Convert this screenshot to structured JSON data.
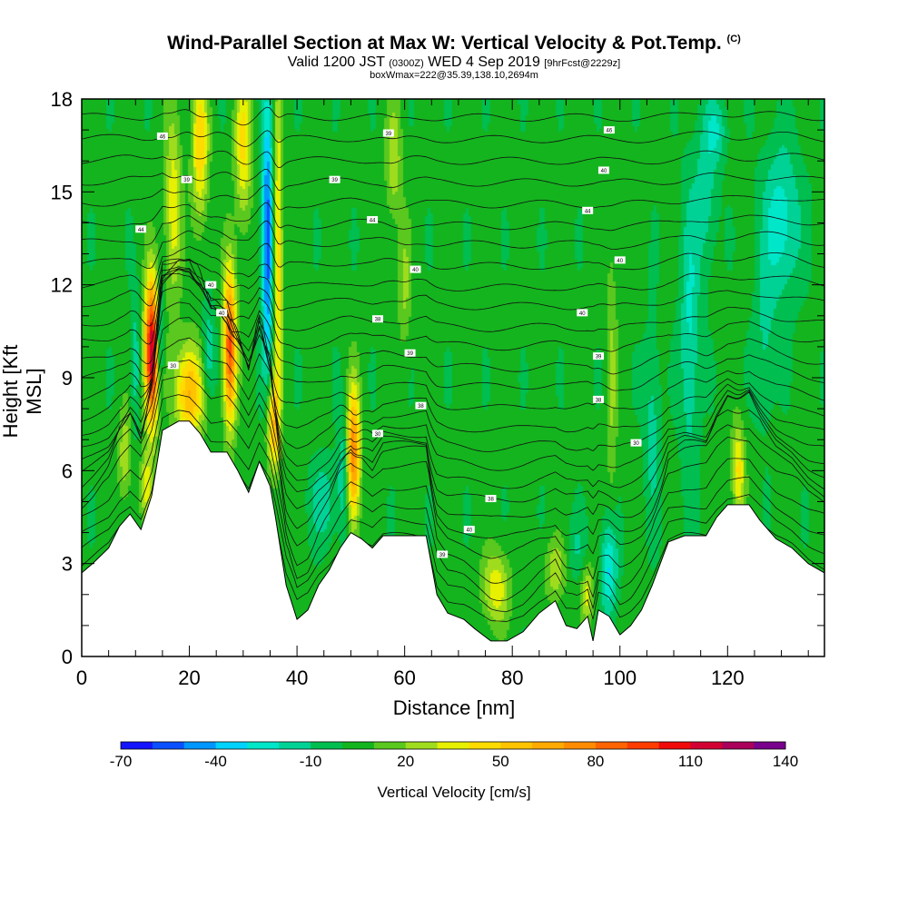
{
  "title": {
    "main": "Wind-Parallel Section at Max W: Vertical Velocity & Pot.Temp.",
    "main_suffix": "(C)",
    "line2_a": "Valid 1200 JST",
    "line2_b": "(0300Z)",
    "line2_c": "WED 4 Sep 2019",
    "line2_d": "[9hrFcst@2229z]",
    "line3": "boxWmax=222@35.39,138.10,2694m"
  },
  "chart_data": {
    "type": "heatmap",
    "xlabel": "Distance [nm]",
    "ylabel": "Height [Kft MSL]",
    "xlim": [
      0,
      138
    ],
    "ylim": [
      0,
      18
    ],
    "x_ticks": [
      "0",
      "20",
      "40",
      "60",
      "80",
      "100",
      "120"
    ],
    "y_ticks": [
      "0",
      "3",
      "6",
      "9",
      "12",
      "15",
      "18"
    ],
    "colorbar": {
      "label": "Vertical Velocity [cm/s]",
      "tick_labels": [
        "-70",
        "-40",
        "-10",
        "20",
        "50",
        "80",
        "110",
        "140"
      ],
      "levels": [
        -70,
        -60,
        -50,
        -40,
        -30,
        -20,
        -10,
        0,
        10,
        20,
        30,
        40,
        50,
        60,
        70,
        80,
        90,
        100,
        110,
        120,
        130,
        140
      ],
      "colors": [
        "#1414ff",
        "#0a50ff",
        "#0096ff",
        "#00d2ff",
        "#00e6c8",
        "#00d296",
        "#00be50",
        "#14b41e",
        "#5ac81e",
        "#a0dc1e",
        "#e6f000",
        "#ffdc00",
        "#ffc300",
        "#ffaa00",
        "#ff8c00",
        "#ff6400",
        "#ff3c00",
        "#f00a0a",
        "#d20032",
        "#aa005a",
        "#78008c"
      ]
    },
    "terrain_kft": [
      [
        0,
        2.7
      ],
      [
        2,
        3.0
      ],
      [
        5,
        3.5
      ],
      [
        7,
        4.2
      ],
      [
        9,
        4.6
      ],
      [
        11,
        4.1
      ],
      [
        13,
        5.2
      ],
      [
        15,
        7.3
      ],
      [
        18,
        7.6
      ],
      [
        20,
        7.6
      ],
      [
        22,
        7.2
      ],
      [
        24,
        6.6
      ],
      [
        27,
        6.6
      ],
      [
        29,
        6.0
      ],
      [
        31,
        5.3
      ],
      [
        33,
        6.3
      ],
      [
        35,
        5.5
      ],
      [
        36,
        4.5
      ],
      [
        38,
        2.3
      ],
      [
        40,
        1.2
      ],
      [
        42,
        1.5
      ],
      [
        44,
        2.3
      ],
      [
        46,
        2.8
      ],
      [
        48,
        3.5
      ],
      [
        50,
        4.0
      ],
      [
        52,
        3.8
      ],
      [
        54,
        3.5
      ],
      [
        56,
        3.9
      ],
      [
        60,
        3.9
      ],
      [
        64,
        3.9
      ],
      [
        66,
        2.0
      ],
      [
        68,
        1.4
      ],
      [
        71,
        1.2
      ],
      [
        73,
        0.9
      ],
      [
        76,
        0.5
      ],
      [
        79,
        0.5
      ],
      [
        82,
        0.8
      ],
      [
        85,
        1.4
      ],
      [
        88,
        1.8
      ],
      [
        90,
        1.0
      ],
      [
        92,
        0.9
      ],
      [
        94,
        1.3
      ],
      [
        95,
        0.5
      ],
      [
        96,
        1.5
      ],
      [
        98,
        1.3
      ],
      [
        100,
        0.7
      ],
      [
        102,
        1.0
      ],
      [
        104,
        1.5
      ],
      [
        106,
        2.3
      ],
      [
        109,
        3.7
      ],
      [
        112,
        3.9
      ],
      [
        116,
        3.9
      ],
      [
        118,
        4.5
      ],
      [
        120,
        4.9
      ],
      [
        124,
        4.9
      ],
      [
        126,
        4.4
      ],
      [
        129,
        3.8
      ],
      [
        132,
        3.5
      ],
      [
        135,
        3.0
      ],
      [
        138,
        2.7
      ]
    ],
    "w_features": [
      {
        "x": 13,
        "z": 9.8,
        "rx": 1.3,
        "rz": 2.3,
        "value": 120
      },
      {
        "x": 14.5,
        "z": 10.2,
        "rx": 0.6,
        "rz": 1.8,
        "value": -40
      },
      {
        "x": 10,
        "z": 9.5,
        "rx": 0.9,
        "rz": 2.2,
        "value": -20
      },
      {
        "x": 20,
        "z": 8.5,
        "rx": 2.5,
        "rz": 1.6,
        "value": 60
      },
      {
        "x": 27.5,
        "z": 10.0,
        "rx": 1.2,
        "rz": 2.5,
        "value": 90
      },
      {
        "x": 23.5,
        "z": 9.8,
        "rx": 1.2,
        "rz": 1.5,
        "value": -25
      },
      {
        "x": 34.5,
        "z": 13.5,
        "rx": 1.0,
        "rz": 4.5,
        "value": -60
      },
      {
        "x": 36.5,
        "z": 13.0,
        "rx": 0.8,
        "rz": 5.0,
        "value": 45
      },
      {
        "x": 35.5,
        "z": 7.5,
        "rx": 1.2,
        "rz": 1.5,
        "value": 55
      },
      {
        "x": 30,
        "z": 16.5,
        "rx": 1.5,
        "rz": 2.5,
        "value": 40
      },
      {
        "x": 22,
        "z": 16.5,
        "rx": 1.5,
        "rz": 2.5,
        "value": 45
      },
      {
        "x": 17,
        "z": 14.5,
        "rx": 1.5,
        "rz": 3.0,
        "value": 35
      },
      {
        "x": 50.5,
        "z": 6.5,
        "rx": 1.2,
        "rz": 2.2,
        "value": 75
      },
      {
        "x": 48.5,
        "z": 6.0,
        "rx": 1.0,
        "rz": 2.0,
        "value": -20
      },
      {
        "x": 45,
        "z": 5.0,
        "rx": 2.5,
        "rz": 1.3,
        "value": -20
      },
      {
        "x": 58,
        "z": 16.0,
        "rx": 1.5,
        "rz": 2.0,
        "value": 25
      },
      {
        "x": 60,
        "z": 12.0,
        "rx": 1.2,
        "rz": 2.0,
        "value": 20
      },
      {
        "x": 77,
        "z": 2.2,
        "rx": 2.5,
        "rz": 1.2,
        "value": 35
      },
      {
        "x": 88,
        "z": 2.8,
        "rx": 2.0,
        "rz": 1.0,
        "value": 25
      },
      {
        "x": 94,
        "z": 2.0,
        "rx": 1.2,
        "rz": 1.0,
        "value": 30
      },
      {
        "x": 98,
        "z": 2.8,
        "rx": 1.5,
        "rz": 1.6,
        "value": -35
      },
      {
        "x": 98.5,
        "z": 9.0,
        "rx": 1.0,
        "rz": 4.5,
        "value": 18
      },
      {
        "x": 106,
        "z": 7.5,
        "rx": 1.5,
        "rz": 3.0,
        "value": -18
      },
      {
        "x": 113,
        "z": 10.5,
        "rx": 1.8,
        "rz": 4.5,
        "value": -25
      },
      {
        "x": 116,
        "z": 15.0,
        "rx": 2.0,
        "rz": 2.5,
        "value": -20
      },
      {
        "x": 122,
        "z": 6.0,
        "rx": 1.2,
        "rz": 1.5,
        "value": 40
      },
      {
        "x": 130,
        "z": 14.0,
        "rx": 3.5,
        "rz": 2.5,
        "value": -30
      },
      {
        "x": 127,
        "z": 10.0,
        "rx": 2.0,
        "rz": 2.5,
        "value": -15
      },
      {
        "x": 12,
        "z": 5.5,
        "rx": 1.2,
        "rz": 1.0,
        "value": 30
      },
      {
        "x": 8,
        "z": 6.5,
        "rx": 1.2,
        "rz": 1.5,
        "value": 25
      },
      {
        "x": 118,
        "z": 17.0,
        "rx": 2.0,
        "rz": 1.0,
        "value": -20
      },
      {
        "x": 92,
        "z": 3.5,
        "rx": 2.0,
        "rz": 1.0,
        "value": -12
      }
    ],
    "theta_contours": {
      "levels_kft": [
        1.0,
        1.5,
        2.0,
        2.6,
        3.3,
        3.8,
        4.4,
        5.0,
        5.5,
        6.1,
        6.7,
        7.3,
        8.0,
        8.7,
        9.3,
        10.0,
        10.6,
        11.3,
        11.9,
        12.6,
        13.3,
        13.9,
        14.6,
        15.3,
        16.0,
        16.7,
        17.4
      ],
      "labels": [
        {
          "x": 15,
          "z": 16.8,
          "text": "46"
        },
        {
          "x": 19.5,
          "z": 15.4,
          "text": "39"
        },
        {
          "x": 11,
          "z": 13.8,
          "text": "44"
        },
        {
          "x": 24,
          "z": 12.0,
          "text": "40"
        },
        {
          "x": 26,
          "z": 11.1,
          "text": "40"
        },
        {
          "x": 17,
          "z": 9.4,
          "text": "30"
        },
        {
          "x": 57,
          "z": 16.9,
          "text": "39"
        },
        {
          "x": 47,
          "z": 15.4,
          "text": "39"
        },
        {
          "x": 54,
          "z": 14.1,
          "text": "44"
        },
        {
          "x": 62,
          "z": 12.5,
          "text": "40"
        },
        {
          "x": 55,
          "z": 10.9,
          "text": "38"
        },
        {
          "x": 61,
          "z": 9.8,
          "text": "39"
        },
        {
          "x": 63,
          "z": 8.1,
          "text": "38"
        },
        {
          "x": 55,
          "z": 7.2,
          "text": "30"
        },
        {
          "x": 76,
          "z": 5.1,
          "text": "38"
        },
        {
          "x": 72,
          "z": 4.1,
          "text": "40"
        },
        {
          "x": 67,
          "z": 3.3,
          "text": "39"
        },
        {
          "x": 98,
          "z": 17.0,
          "text": "46"
        },
        {
          "x": 97,
          "z": 15.7,
          "text": "40"
        },
        {
          "x": 94,
          "z": 14.4,
          "text": "44"
        },
        {
          "x": 100,
          "z": 12.8,
          "text": "40"
        },
        {
          "x": 93,
          "z": 11.1,
          "text": "40"
        },
        {
          "x": 96,
          "z": 9.7,
          "text": "39"
        },
        {
          "x": 96,
          "z": 8.3,
          "text": "38"
        },
        {
          "x": 103,
          "z": 6.9,
          "text": "30"
        }
      ]
    }
  }
}
